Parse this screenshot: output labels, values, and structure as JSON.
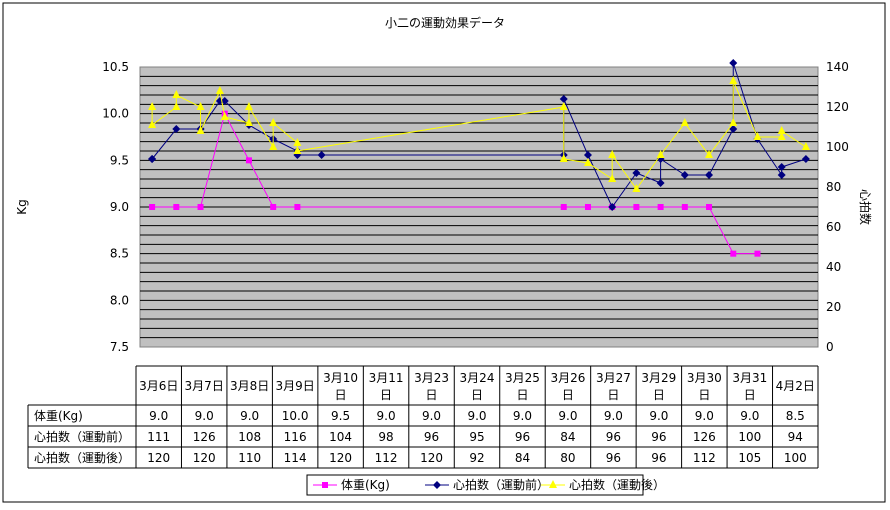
{
  "chart_data": {
    "type": "line",
    "title": "小二の運動効果データ",
    "ylabel_left": "Kg",
    "ylabel_right": "心拍数",
    "y_left_range": [
      7.5,
      10.5
    ],
    "y_left_ticks": [
      "10.5",
      "10.0",
      "9.5",
      "9.0",
      "8.5",
      "8.0",
      "7.5"
    ],
    "y_right_range": [
      0,
      140
    ],
    "y_right_ticks": [
      "140",
      "120",
      "100",
      "80",
      "60",
      "40",
      "20",
      "0"
    ],
    "grid": true,
    "legend_position": "bottom",
    "categories": [
      "3月6日",
      "3月7日",
      "3月8日",
      "3月9日",
      "3月10日",
      "3月11日",
      "3月23日",
      "3月24日",
      "3月25日",
      "3月26日",
      "3月27日",
      "3月29日",
      "3月30日",
      "3月31日",
      "4月2日"
    ],
    "table_rows": [
      {
        "label": "体重(Kg)",
        "values": [
          "9.0",
          "9.0",
          "9.0",
          "10.0",
          "9.5",
          "9.0",
          "9.0",
          "9.0",
          "9.0",
          "9.0",
          "9.0",
          "9.0",
          "9.0",
          "9.0",
          "8.5"
        ]
      },
      {
        "label": "心拍数（運動前）",
        "values": [
          "111",
          "126",
          "108",
          "116",
          "104",
          "98",
          "96",
          "95",
          "96",
          "84",
          "96",
          "96",
          "126",
          "100",
          "94"
        ]
      },
      {
        "label": "心拍数（運動後）",
        "values": [
          "120",
          "120",
          "110",
          "114",
          "120",
          "112",
          "120",
          "92",
          "84",
          "80",
          "96",
          "96",
          "112",
          "105",
          "100"
        ]
      }
    ],
    "series": [
      {
        "name": "体重(Kg)",
        "axis": "left",
        "color": "#ff00ff",
        "marker": "square",
        "points": [
          [
            0.5,
            9.0
          ],
          [
            1.5,
            9.0
          ],
          [
            2.5,
            9.0
          ],
          [
            3.5,
            10.0
          ],
          [
            4.5,
            9.5
          ],
          [
            5.5,
            9.0
          ],
          [
            6.5,
            9.0
          ],
          [
            17.5,
            9.0
          ],
          [
            18.5,
            9.0
          ],
          [
            19.5,
            9.0
          ],
          [
            20.5,
            9.0
          ],
          [
            21.5,
            9.0
          ],
          [
            22.5,
            9.0
          ],
          [
            23.5,
            9.0
          ],
          [
            24.5,
            8.5
          ],
          [
            25.5,
            8.5
          ]
        ]
      },
      {
        "name": "心拍数（運動前）",
        "axis": "right",
        "color": "#000080",
        "marker": "diamond",
        "points": [
          [
            0.5,
            94
          ],
          [
            0.5,
            94
          ],
          [
            1.5,
            109
          ],
          [
            2.5,
            109
          ],
          [
            2.5,
            109
          ],
          [
            3.3,
            123
          ],
          [
            3.5,
            123
          ],
          [
            4.5,
            111
          ],
          [
            5.5,
            104
          ],
          [
            6.5,
            98
          ],
          [
            6.5,
            96
          ],
          [
            7.5,
            96
          ],
          [
            17.5,
            96
          ],
          [
            17.5,
            124
          ],
          [
            18.5,
            96
          ],
          [
            19.5,
            70
          ],
          [
            20.5,
            87
          ],
          [
            21.5,
            82
          ],
          [
            21.5,
            94
          ],
          [
            22.5,
            86
          ],
          [
            23.5,
            86
          ],
          [
            24.5,
            109
          ],
          [
            24.5,
            142
          ],
          [
            25.5,
            104
          ],
          [
            26.5,
            86
          ],
          [
            26.5,
            90
          ],
          [
            27.5,
            94
          ]
        ]
      },
      {
        "name": "心拍数（運動後）",
        "axis": "right",
        "color": "#ffff00",
        "marker": "triangle",
        "points": [
          [
            0.5,
            120
          ],
          [
            0.5,
            111
          ],
          [
            1.5,
            120
          ],
          [
            1.5,
            126
          ],
          [
            2.5,
            120
          ],
          [
            2.5,
            108
          ],
          [
            3.3,
            128
          ],
          [
            3.5,
            115
          ],
          [
            4.5,
            112
          ],
          [
            4.5,
            120
          ],
          [
            5.5,
            100
          ],
          [
            5.5,
            112
          ],
          [
            6.5,
            102
          ],
          [
            6.5,
            98
          ],
          [
            17.5,
            120
          ],
          [
            17.5,
            94
          ],
          [
            18.5,
            92
          ],
          [
            19.5,
            84
          ],
          [
            19.5,
            96
          ],
          [
            20.5,
            79
          ],
          [
            21.5,
            96
          ],
          [
            22.5,
            112
          ],
          [
            23.5,
            96
          ],
          [
            24.5,
            112
          ],
          [
            24.5,
            133
          ],
          [
            25.5,
            105
          ],
          [
            26.5,
            105
          ],
          [
            26.5,
            108
          ],
          [
            27.5,
            100
          ]
        ]
      }
    ]
  }
}
